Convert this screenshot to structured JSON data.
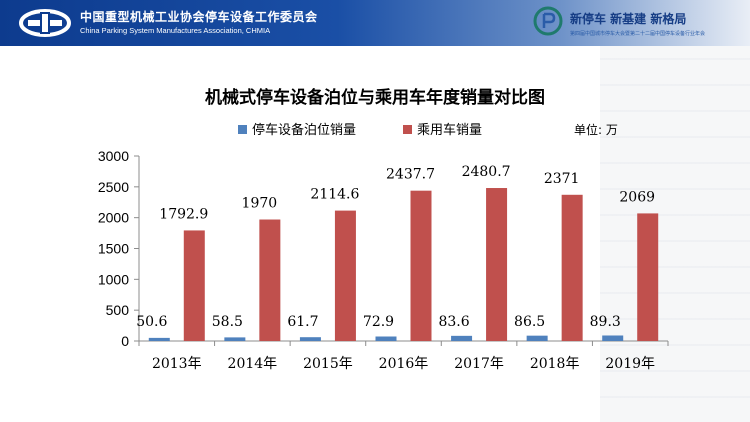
{
  "header": {
    "org_name_cn": "中国重型机械工业协会停车设备工作委员会",
    "org_name_en": "China Parking System Manufactures Association, CHMIA",
    "slogan": "新停车  新基建  新格局",
    "slogan_sub": "第四届中国城市停车大会暨第二十二届中国停车设备行业年会"
  },
  "colors": {
    "series_parking": "#4f81bd",
    "series_car": "#c0504d",
    "header": "#0d3b8e"
  },
  "chart_data": {
    "type": "bar",
    "title": "机械式停车设备泊位与乘用车年度销量对比图",
    "unit_label": "单位: 万",
    "categories": [
      "2013年",
      "2014年",
      "2015年",
      "2016年",
      "2017年",
      "2018年",
      "2019年"
    ],
    "series": [
      {
        "name": "停车设备泊位销量",
        "values": [
          50.6,
          58.5,
          61.7,
          72.9,
          83.6,
          86.5,
          89.3
        ],
        "labels": [
          "50.6",
          "58.5",
          "61.7",
          "72.9",
          "83.6",
          "86.5",
          "89.3"
        ]
      },
      {
        "name": "乘用车销量",
        "values": [
          1792.9,
          1970,
          2114.6,
          2437.7,
          2480.7,
          2371,
          2069
        ],
        "labels": [
          "1792.9",
          "1970",
          "2114.6",
          "2437.7",
          "2480.7",
          "2371",
          "2069"
        ]
      }
    ],
    "y_ticks": [
      "0",
      "500",
      "1000",
      "1500",
      "2000",
      "2500",
      "3000"
    ],
    "ylim": [
      0,
      3000
    ],
    "grid": false,
    "legend_position": "top"
  }
}
